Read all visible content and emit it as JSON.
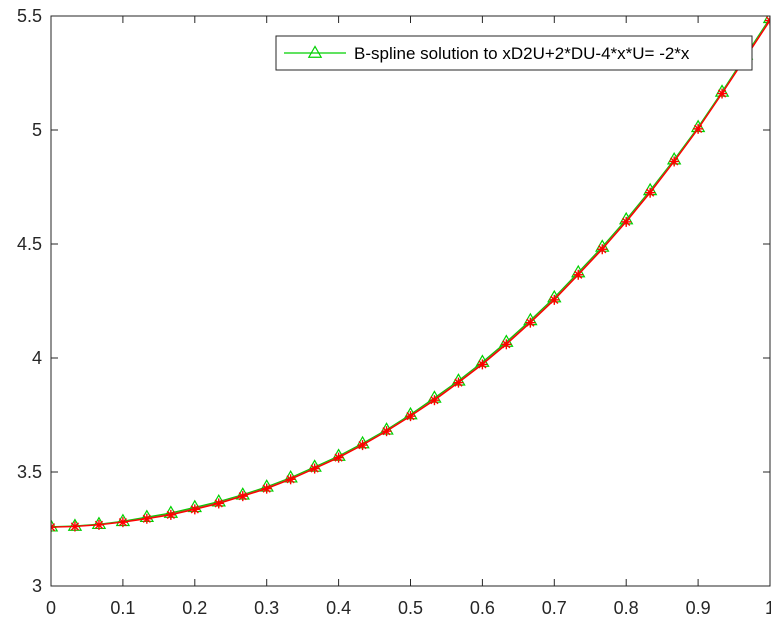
{
  "chart_data": {
    "type": "line",
    "title": "",
    "xlabel": "",
    "ylabel": "",
    "xlim": [
      0,
      1
    ],
    "ylim": [
      3,
      5.5
    ],
    "xticks": [
      0,
      0.1,
      0.2,
      0.3,
      0.4,
      0.5,
      0.6,
      0.7,
      0.8,
      0.9,
      1
    ],
    "xtick_labels": [
      "0",
      "0.1",
      "0.2",
      "0.3",
      "0.4",
      "0.5",
      "0.6",
      "0.7",
      "0.8",
      "0.9",
      "1"
    ],
    "yticks": [
      3,
      3.5,
      4,
      4.5,
      5,
      5.5
    ],
    "ytick_labels": [
      "3",
      "3.5",
      "4",
      "4.5",
      "5",
      "5.5"
    ],
    "grid": false,
    "legend": {
      "location": "top-right",
      "entries": [
        "B-spline solution to xD2U+2*DU-4*x*U= -2*x"
      ]
    },
    "x": [
      0,
      0.0333,
      0.0667,
      0.1,
      0.1333,
      0.1667,
      0.2,
      0.2333,
      0.2667,
      0.3,
      0.3333,
      0.3667,
      0.4,
      0.4333,
      0.4667,
      0.5,
      0.5333,
      0.5667,
      0.6,
      0.6333,
      0.6667,
      0.7,
      0.7333,
      0.7667,
      0.8,
      0.8333,
      0.8667,
      0.9,
      0.9333,
      0.9667,
      1
    ],
    "series": [
      {
        "name": "B-spline solution to xD2U+2*DU-4*x*U= -2*x",
        "color": "#00d000",
        "marker": "triangle-open",
        "values": [
          3.26,
          3.263,
          3.271,
          3.284,
          3.302,
          3.32,
          3.345,
          3.37,
          3.4,
          3.435,
          3.475,
          3.522,
          3.57,
          3.625,
          3.685,
          3.752,
          3.825,
          3.9,
          3.982,
          4.07,
          4.165,
          4.265,
          4.375,
          4.487,
          4.607,
          4.735,
          4.87,
          5.012,
          5.167,
          5.33,
          5.49
        ]
      },
      {
        "color": "#ff0000",
        "marker": "asterisk",
        "values": [
          3.258,
          3.261,
          3.268,
          3.28,
          3.295,
          3.312,
          3.336,
          3.362,
          3.394,
          3.427,
          3.468,
          3.515,
          3.563,
          3.618,
          3.679,
          3.745,
          3.815,
          3.892,
          3.972,
          4.06,
          4.155,
          4.255,
          4.365,
          4.477,
          4.597,
          4.725,
          4.862,
          5.005,
          5.16,
          5.32,
          5.48
        ]
      },
      {
        "color": "#a05c2a",
        "marker": "none",
        "values": [
          3.258,
          3.262,
          3.27,
          3.282,
          3.298,
          3.316,
          3.34,
          3.366,
          3.397,
          3.431,
          3.471,
          3.518,
          3.566,
          3.621,
          3.682,
          3.748,
          3.82,
          3.896,
          3.977,
          4.065,
          4.16,
          4.26,
          4.37,
          4.482,
          4.602,
          4.73,
          4.866,
          5.008,
          5.163,
          5.325,
          5.485
        ]
      }
    ]
  }
}
